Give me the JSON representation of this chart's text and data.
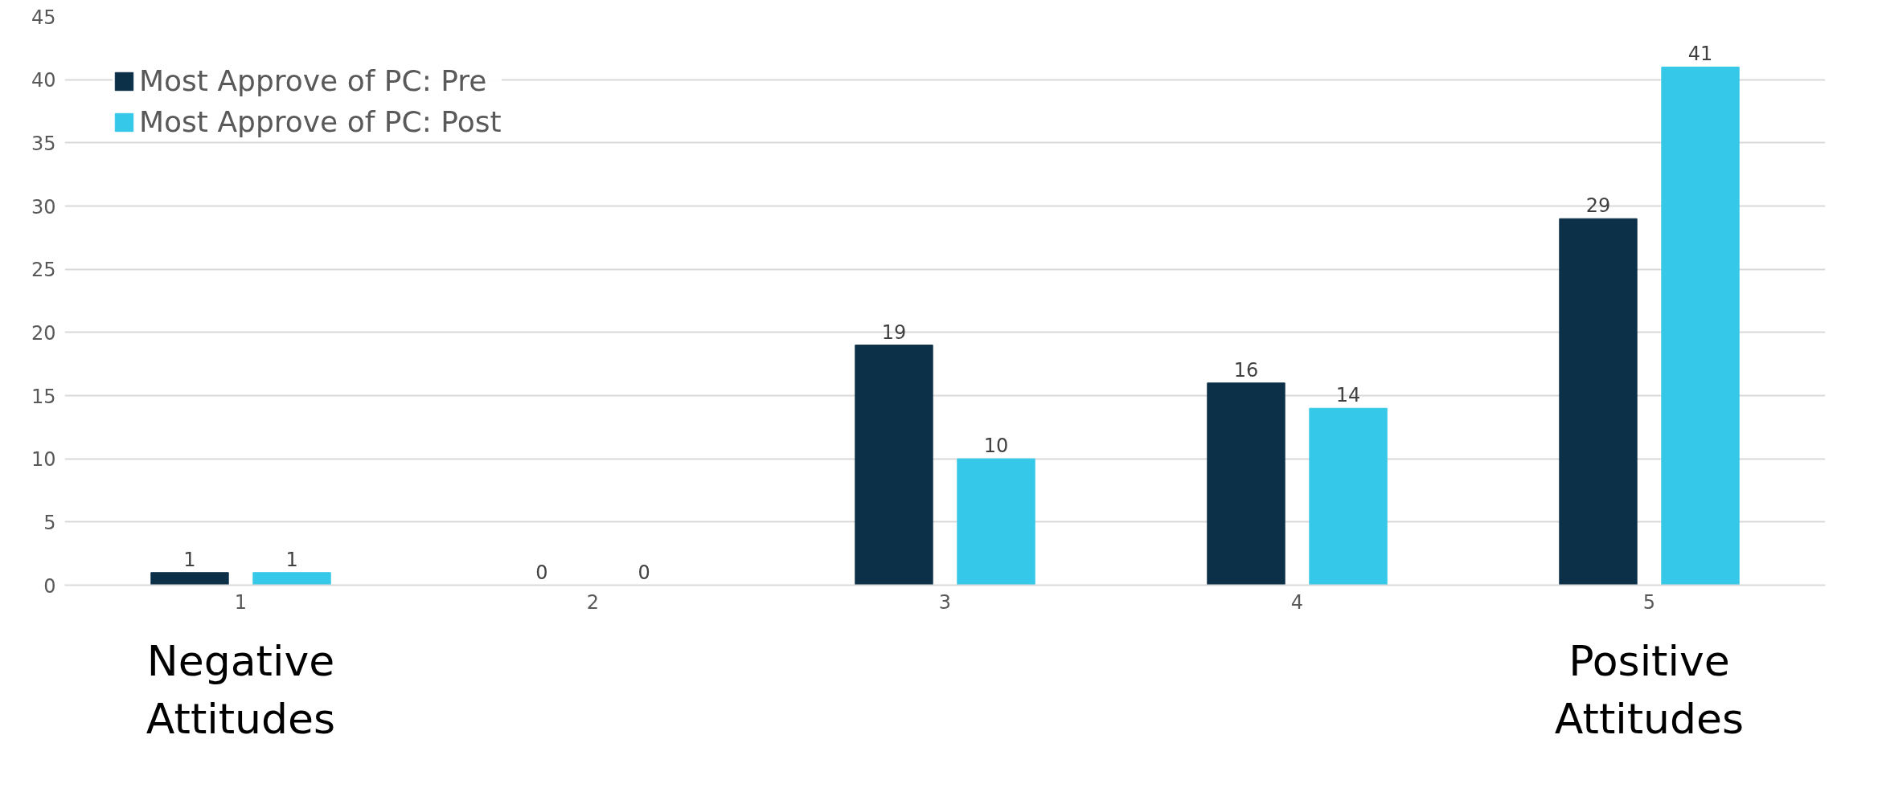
{
  "chart_data": {
    "type": "bar",
    "categories": [
      "1",
      "2",
      "3",
      "4",
      "5"
    ],
    "series": [
      {
        "name": "Most Approve of PC: Pre",
        "color": "#0d3049",
        "values": [
          1,
          0,
          19,
          16,
          29
        ]
      },
      {
        "name": "Most Approve of PC: Post",
        "color": "#36c8e8",
        "values": [
          1,
          0,
          10,
          14,
          41
        ]
      }
    ],
    "ylim": [
      0,
      45
    ],
    "yticks": [
      0,
      5,
      10,
      15,
      20,
      25,
      30,
      35,
      40,
      45
    ],
    "grid": "y",
    "legend": "top left",
    "data_labels": true,
    "annotations": [
      "Negative\nAttitudes",
      "Positive\nAttitudes"
    ]
  }
}
